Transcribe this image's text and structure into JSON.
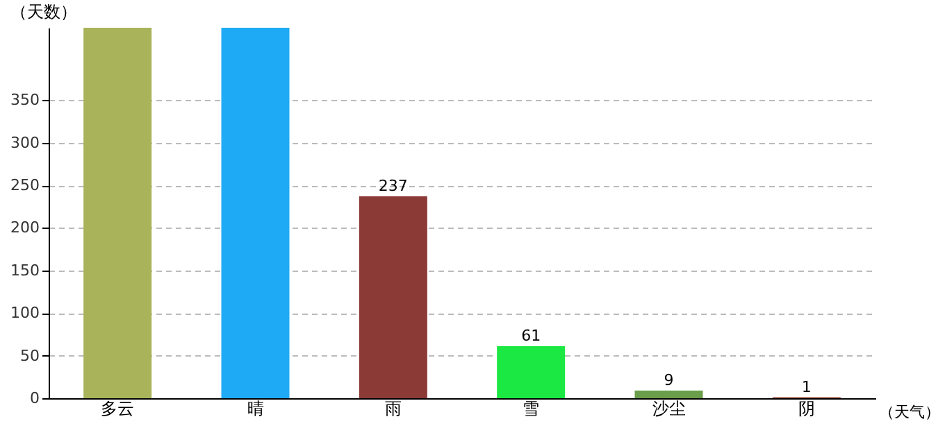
{
  "chart_data": {
    "type": "bar",
    "xlabel": "（天气）",
    "ylabel": "（天数）",
    "categories": [
      "多云",
      "晴",
      "雨",
      "雪",
      "沙尘",
      "阴"
    ],
    "values": [
      435,
      435,
      237,
      61,
      9,
      1
    ],
    "colors": [
      "#a9b35a",
      "#1faaf5",
      "#8b3a36",
      "#1ce843",
      "#6a9e4a",
      "#8b2a1a"
    ],
    "value_labels": [
      null,
      null,
      "237",
      "61",
      "9",
      "1"
    ],
    "ylim": [
      0,
      435
    ],
    "yticks": [
      0,
      50,
      100,
      150,
      200,
      250,
      300,
      350
    ],
    "grid": "y",
    "legend": false
  }
}
